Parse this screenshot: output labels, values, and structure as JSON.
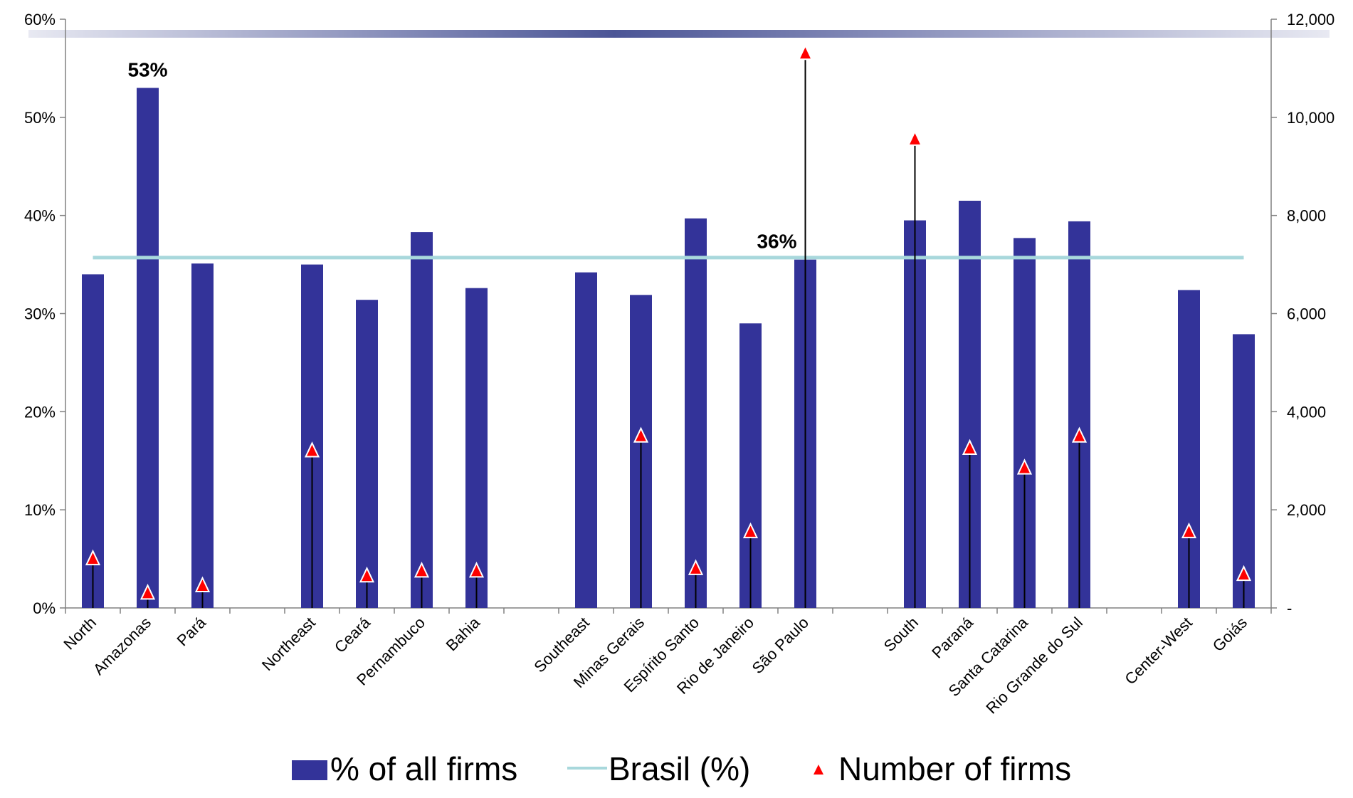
{
  "chart_data": {
    "type": "bar",
    "title": "",
    "categories": [
      "North",
      "Amazonas",
      "Pará",
      "",
      "Northeast",
      "Ceará",
      "Pernambuco",
      "Bahia",
      "",
      "Southeast",
      "Minas Gerais",
      "Espírito Santo",
      "Rio de Janeiro",
      "São Paulo",
      "",
      "South",
      "Paraná",
      "Santa Catarina",
      "Rio Grande do Sul",
      "",
      "Center-West",
      "Goiás"
    ],
    "series": [
      {
        "name": "% of all firms",
        "type": "bar",
        "axis": "left",
        "color": "#333399",
        "values": [
          34,
          53,
          35.1,
          null,
          35,
          31.4,
          38.3,
          32.6,
          null,
          34.2,
          31.9,
          39.7,
          29,
          35.5,
          null,
          39.5,
          41.5,
          37.7,
          39.4,
          null,
          32.4,
          27.9
        ]
      },
      {
        "name": "Brasil (%)",
        "type": "line",
        "axis": "left",
        "color": "#a8d8dc",
        "value": 35.7
      },
      {
        "name": "Number of firms",
        "type": "marker",
        "axis": "right",
        "color": "#ff0000",
        "values": [
          1000,
          300,
          450,
          null,
          3200,
          650,
          750,
          750,
          null,
          null,
          3500,
          800,
          1550,
          11300,
          null,
          9550,
          3250,
          2850,
          3500,
          null,
          1550,
          680
        ]
      }
    ],
    "left_axis": {
      "ylim": [
        0,
        60
      ],
      "ticks": [
        "0%",
        "10%",
        "20%",
        "30%",
        "40%",
        "50%",
        "60%"
      ]
    },
    "right_axis": {
      "ylim": [
        0,
        12000
      ],
      "ticks": [
        "-",
        "2,000",
        "4,000",
        "6,000",
        "8,000",
        "10,000",
        "12,000"
      ]
    },
    "annotations": [
      {
        "text": "53%",
        "category_index": 1
      },
      {
        "text": "36%",
        "category_index": 13
      }
    ],
    "legend": {
      "placement": "bottom",
      "items": [
        "% of all firms",
        "Brasil (%)",
        "Number of firms"
      ]
    },
    "grid": false
  }
}
